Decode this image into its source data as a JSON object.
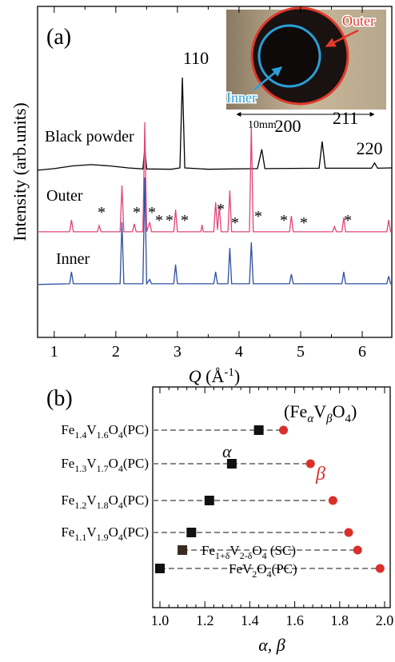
{
  "chart_data": [
    {
      "type": "line",
      "panel_label": "(a)",
      "ylabel": "Intensity (arb.units)",
      "xlabel": {
        "symbol": "Q",
        "unit": "(Å",
        "exponent": "-1",
        "close": ")"
      },
      "xlim": [
        0.73,
        6.48
      ],
      "xticks": [
        1,
        2,
        3,
        4,
        5,
        6
      ],
      "ylim": [
        0,
        100
      ],
      "peak_labels": [
        "110",
        "200",
        "211",
        "220"
      ],
      "peak_markers": [
        "*",
        "*",
        "*",
        "*",
        "*",
        "*",
        "*",
        "*",
        "*",
        "*",
        "*",
        "*"
      ],
      "inset": {
        "outer_label": "Outer",
        "inner_label": "Inner",
        "scale": "10mm"
      },
      "series": [
        {
          "name": "Black powder",
          "color": "#000000",
          "x": [
            0.73,
            1.0,
            1.3,
            1.6,
            1.9,
            2.2,
            2.44,
            2.47,
            2.5,
            2.9,
            3.04,
            3.08,
            3.12,
            3.5,
            4.3,
            4.37,
            4.42,
            5.3,
            5.35,
            5.4,
            6.15,
            6.2,
            6.25,
            6.48
          ],
          "values": [
            50.5,
            51.0,
            51.8,
            52.2,
            51.8,
            51.2,
            50.9,
            57.2,
            50.9,
            50.8,
            51.2,
            78.5,
            51.2,
            50.8,
            51.0,
            56.8,
            51.0,
            51.1,
            59.2,
            51.1,
            51.1,
            52.7,
            51.1,
            51.2
          ]
        },
        {
          "name": "Outer",
          "color": "#e0457b",
          "x": [
            0.73,
            1.25,
            1.28,
            1.31,
            1.7,
            1.73,
            1.76,
            2.07,
            2.1,
            2.13,
            2.27,
            2.3,
            2.33,
            2.44,
            2.47,
            2.5,
            2.55,
            2.58,
            2.94,
            2.97,
            3.0,
            3.38,
            3.4,
            3.42,
            3.59,
            3.62,
            3.65,
            3.68,
            3.71,
            3.82,
            3.85,
            3.88,
            4.17,
            4.2,
            4.23,
            4.82,
            4.85,
            4.88,
            5.52,
            5.55,
            5.58,
            5.67,
            5.7,
            5.73,
            6.4,
            6.43,
            6.46,
            6.48
          ],
          "values": [
            31.9,
            31.9,
            35.5,
            31.9,
            31.9,
            33.8,
            31.9,
            31.9,
            45.9,
            31.9,
            31.9,
            34.3,
            31.9,
            31.9,
            65,
            31.9,
            34.8,
            31.9,
            31.9,
            38.6,
            31.9,
            31.9,
            34,
            31.9,
            31.9,
            40.8,
            32.5,
            39.6,
            31.9,
            31.9,
            44.4,
            31.9,
            31.9,
            63.8,
            31.9,
            31.9,
            36.7,
            31.9,
            31.9,
            33.5,
            31.9,
            31.9,
            36.2,
            31.9,
            31.9,
            35.5,
            31.9,
            31.9
          ]
        },
        {
          "name": "Inner",
          "color": "#2f4fa0",
          "x": [
            0.73,
            1.25,
            1.28,
            1.31,
            2.07,
            2.1,
            2.13,
            2.44,
            2.47,
            2.5,
            2.55,
            2.58,
            2.94,
            2.97,
            3.0,
            3.59,
            3.62,
            3.65,
            3.82,
            3.85,
            3.88,
            4.17,
            4.2,
            4.23,
            4.82,
            4.85,
            4.88,
            5.67,
            5.7,
            5.73,
            6.4,
            6.43,
            6.46,
            6.48
          ],
          "values": [
            16.0,
            16.2,
            19.8,
            16.2,
            16.2,
            34.8,
            16.2,
            16.2,
            48.3,
            16.2,
            17.5,
            16.2,
            16.2,
            22,
            16.2,
            16.2,
            19.8,
            16.2,
            16.2,
            27,
            16.2,
            16.2,
            28.7,
            16.2,
            16.2,
            19.1,
            16.2,
            16.2,
            19.8,
            16.2,
            16.2,
            18.5,
            16.2,
            16.2
          ]
        }
      ]
    },
    {
      "type": "dot",
      "panel_label": "(b)",
      "xlabel": "α, β",
      "legend_formula": [
        "(Fe",
        "α",
        "V",
        "β",
        "O",
        "4",
        ")"
      ],
      "xlim": [
        0.968,
        2.025
      ],
      "xticks": [
        {
          "value": 1,
          "label": "1.0"
        },
        1.2,
        1.4,
        1.6,
        1.8,
        {
          "value": 2,
          "label": "2.0"
        }
      ],
      "categories": [
        [
          "Fe",
          "1.4",
          "V",
          "1.6",
          "O",
          "4",
          "(PC)"
        ],
        [
          "Fe",
          "1.3",
          "V",
          "1.7",
          "O",
          "4",
          "(PC)"
        ],
        [
          "Fe",
          "1.2",
          "V",
          "1.8",
          "O",
          "4",
          "(PC)"
        ],
        [
          "Fe",
          "1.1",
          "V",
          "1.9",
          "O",
          "4",
          "(PC)"
        ],
        [
          "Fe",
          "1+δ",
          "V",
          "2-δ",
          "O",
          "4",
          " (SC)"
        ],
        [
          "FeV",
          "2",
          "O",
          "4",
          "(PC)"
        ]
      ],
      "series": [
        {
          "name": "α",
          "color": "#111111",
          "values": [
            1.44,
            1.32,
            1.22,
            1.14,
            1.1,
            1.0
          ]
        },
        {
          "name": "β",
          "color": "#d9302c",
          "values": [
            1.55,
            1.67,
            1.77,
            1.84,
            1.88,
            1.98
          ]
        }
      ]
    }
  ]
}
